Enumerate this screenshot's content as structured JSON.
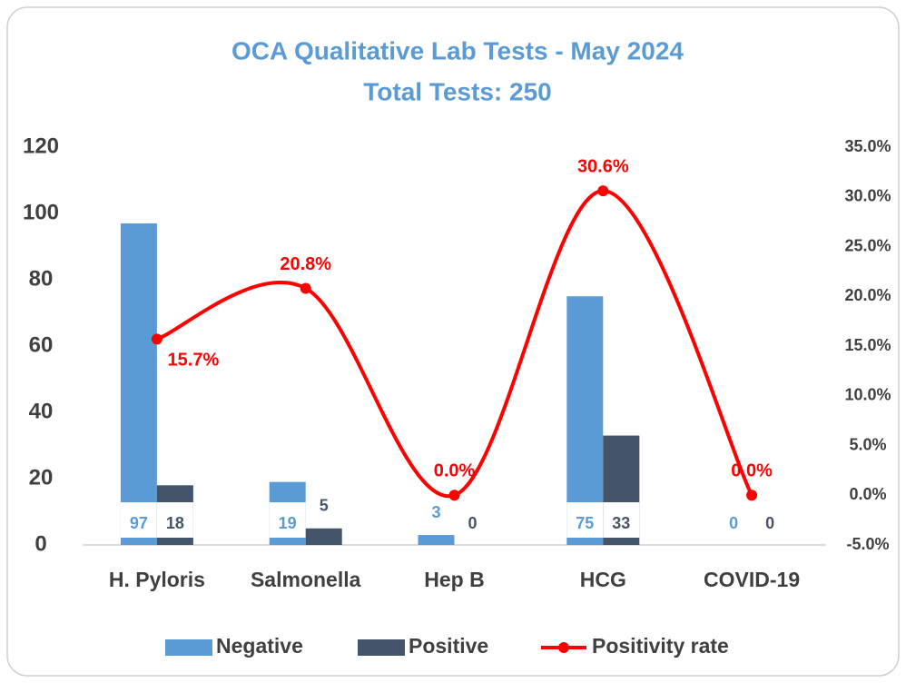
{
  "chart_data": {
    "type": "bar",
    "title": "OCA Qualitative Lab Tests - May 2024",
    "subtitle": "Total Tests: 250",
    "categories": [
      "H. Pyloris",
      "Salmonella",
      "Hep B",
      "HCG",
      "COVID-19"
    ],
    "series": [
      {
        "name": "Negative",
        "color": "#5b9bd5",
        "values": [
          97,
          19,
          3,
          75,
          0
        ]
      },
      {
        "name": "Positive",
        "color": "#44546a",
        "values": [
          18,
          5,
          0,
          33,
          0
        ]
      },
      {
        "name": "Positivity rate",
        "color": "#ff0000",
        "axis": "y2",
        "type": "line",
        "values": [
          15.7,
          20.8,
          0,
          30.6,
          0
        ],
        "value_labels": [
          "15.7%",
          "20.8%",
          "0.0%",
          "30.6%",
          "0.0%"
        ]
      }
    ],
    "ylim": [
      0,
      120
    ],
    "yticks": [
      0,
      20,
      40,
      60,
      80,
      100,
      120
    ],
    "y2lim": [
      -5,
      35
    ],
    "y2ticks": [
      {
        "value": -5,
        "label": "-5.0%"
      },
      {
        "value": 0,
        "label": "0.0%"
      },
      {
        "value": 5,
        "label": "5.0%"
      },
      {
        "value": 10,
        "label": "10.0%"
      },
      {
        "value": 15,
        "label": "15.0%"
      },
      {
        "value": 20,
        "label": "20.0%"
      },
      {
        "value": 25,
        "label": "25.0%"
      },
      {
        "value": 30,
        "label": "30.0%"
      },
      {
        "value": 35,
        "label": "35.0%"
      }
    ],
    "legend": "bottom",
    "grid": false
  }
}
